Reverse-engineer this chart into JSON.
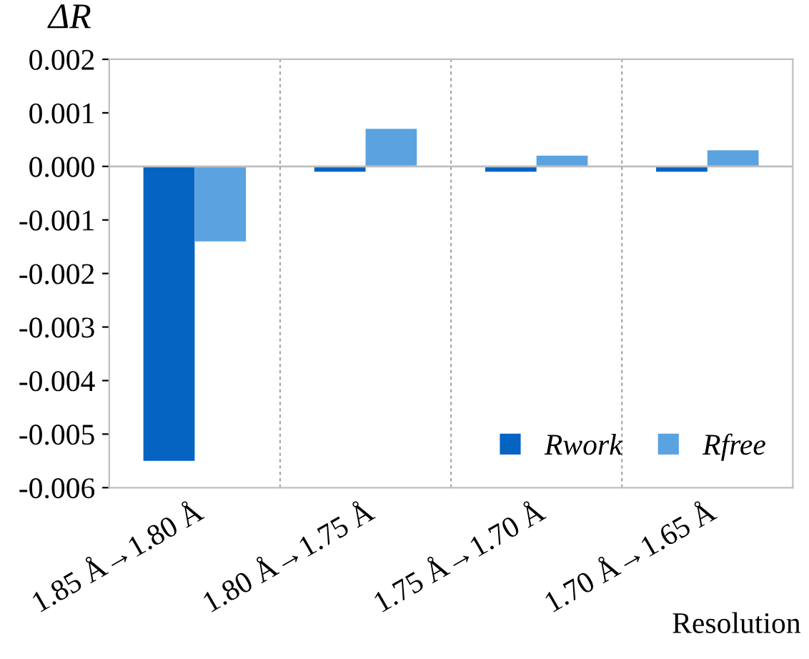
{
  "chart_data": {
    "type": "bar",
    "ylabel": "ΔR",
    "xlabel": "Resolution",
    "categories": [
      "1.85 Å→1.80 Å",
      "1.80 Å→1.75 Å",
      "1.75 Å→1.70 Å",
      "1.70 Å→1.65 Å"
    ],
    "series": [
      {
        "name": "Rwork",
        "color": "#0563c1",
        "values": [
          -0.0055,
          -0.0001,
          -0.0001,
          -0.0001
        ]
      },
      {
        "name": "Rfree",
        "color": "#5ba3e0",
        "values": [
          -0.0014,
          0.0007,
          0.0002,
          0.0003
        ]
      }
    ],
    "ylim": [
      -0.006,
      0.002
    ],
    "yticks": [
      {
        "value": -0.006,
        "label": "-0.006"
      },
      {
        "value": -0.005,
        "label": "-0.005"
      },
      {
        "value": -0.004,
        "label": "-0.004"
      },
      {
        "value": -0.003,
        "label": "-0.003"
      },
      {
        "value": -0.002,
        "label": "-0.002"
      },
      {
        "value": -0.001,
        "label": "-0.001"
      },
      {
        "value": 0,
        "label": "0.000"
      },
      {
        "value": 0.001,
        "label": "0.001"
      },
      {
        "value": 0.002,
        "label": "0.002"
      }
    ],
    "grid": "x",
    "legend": "bottom right"
  }
}
